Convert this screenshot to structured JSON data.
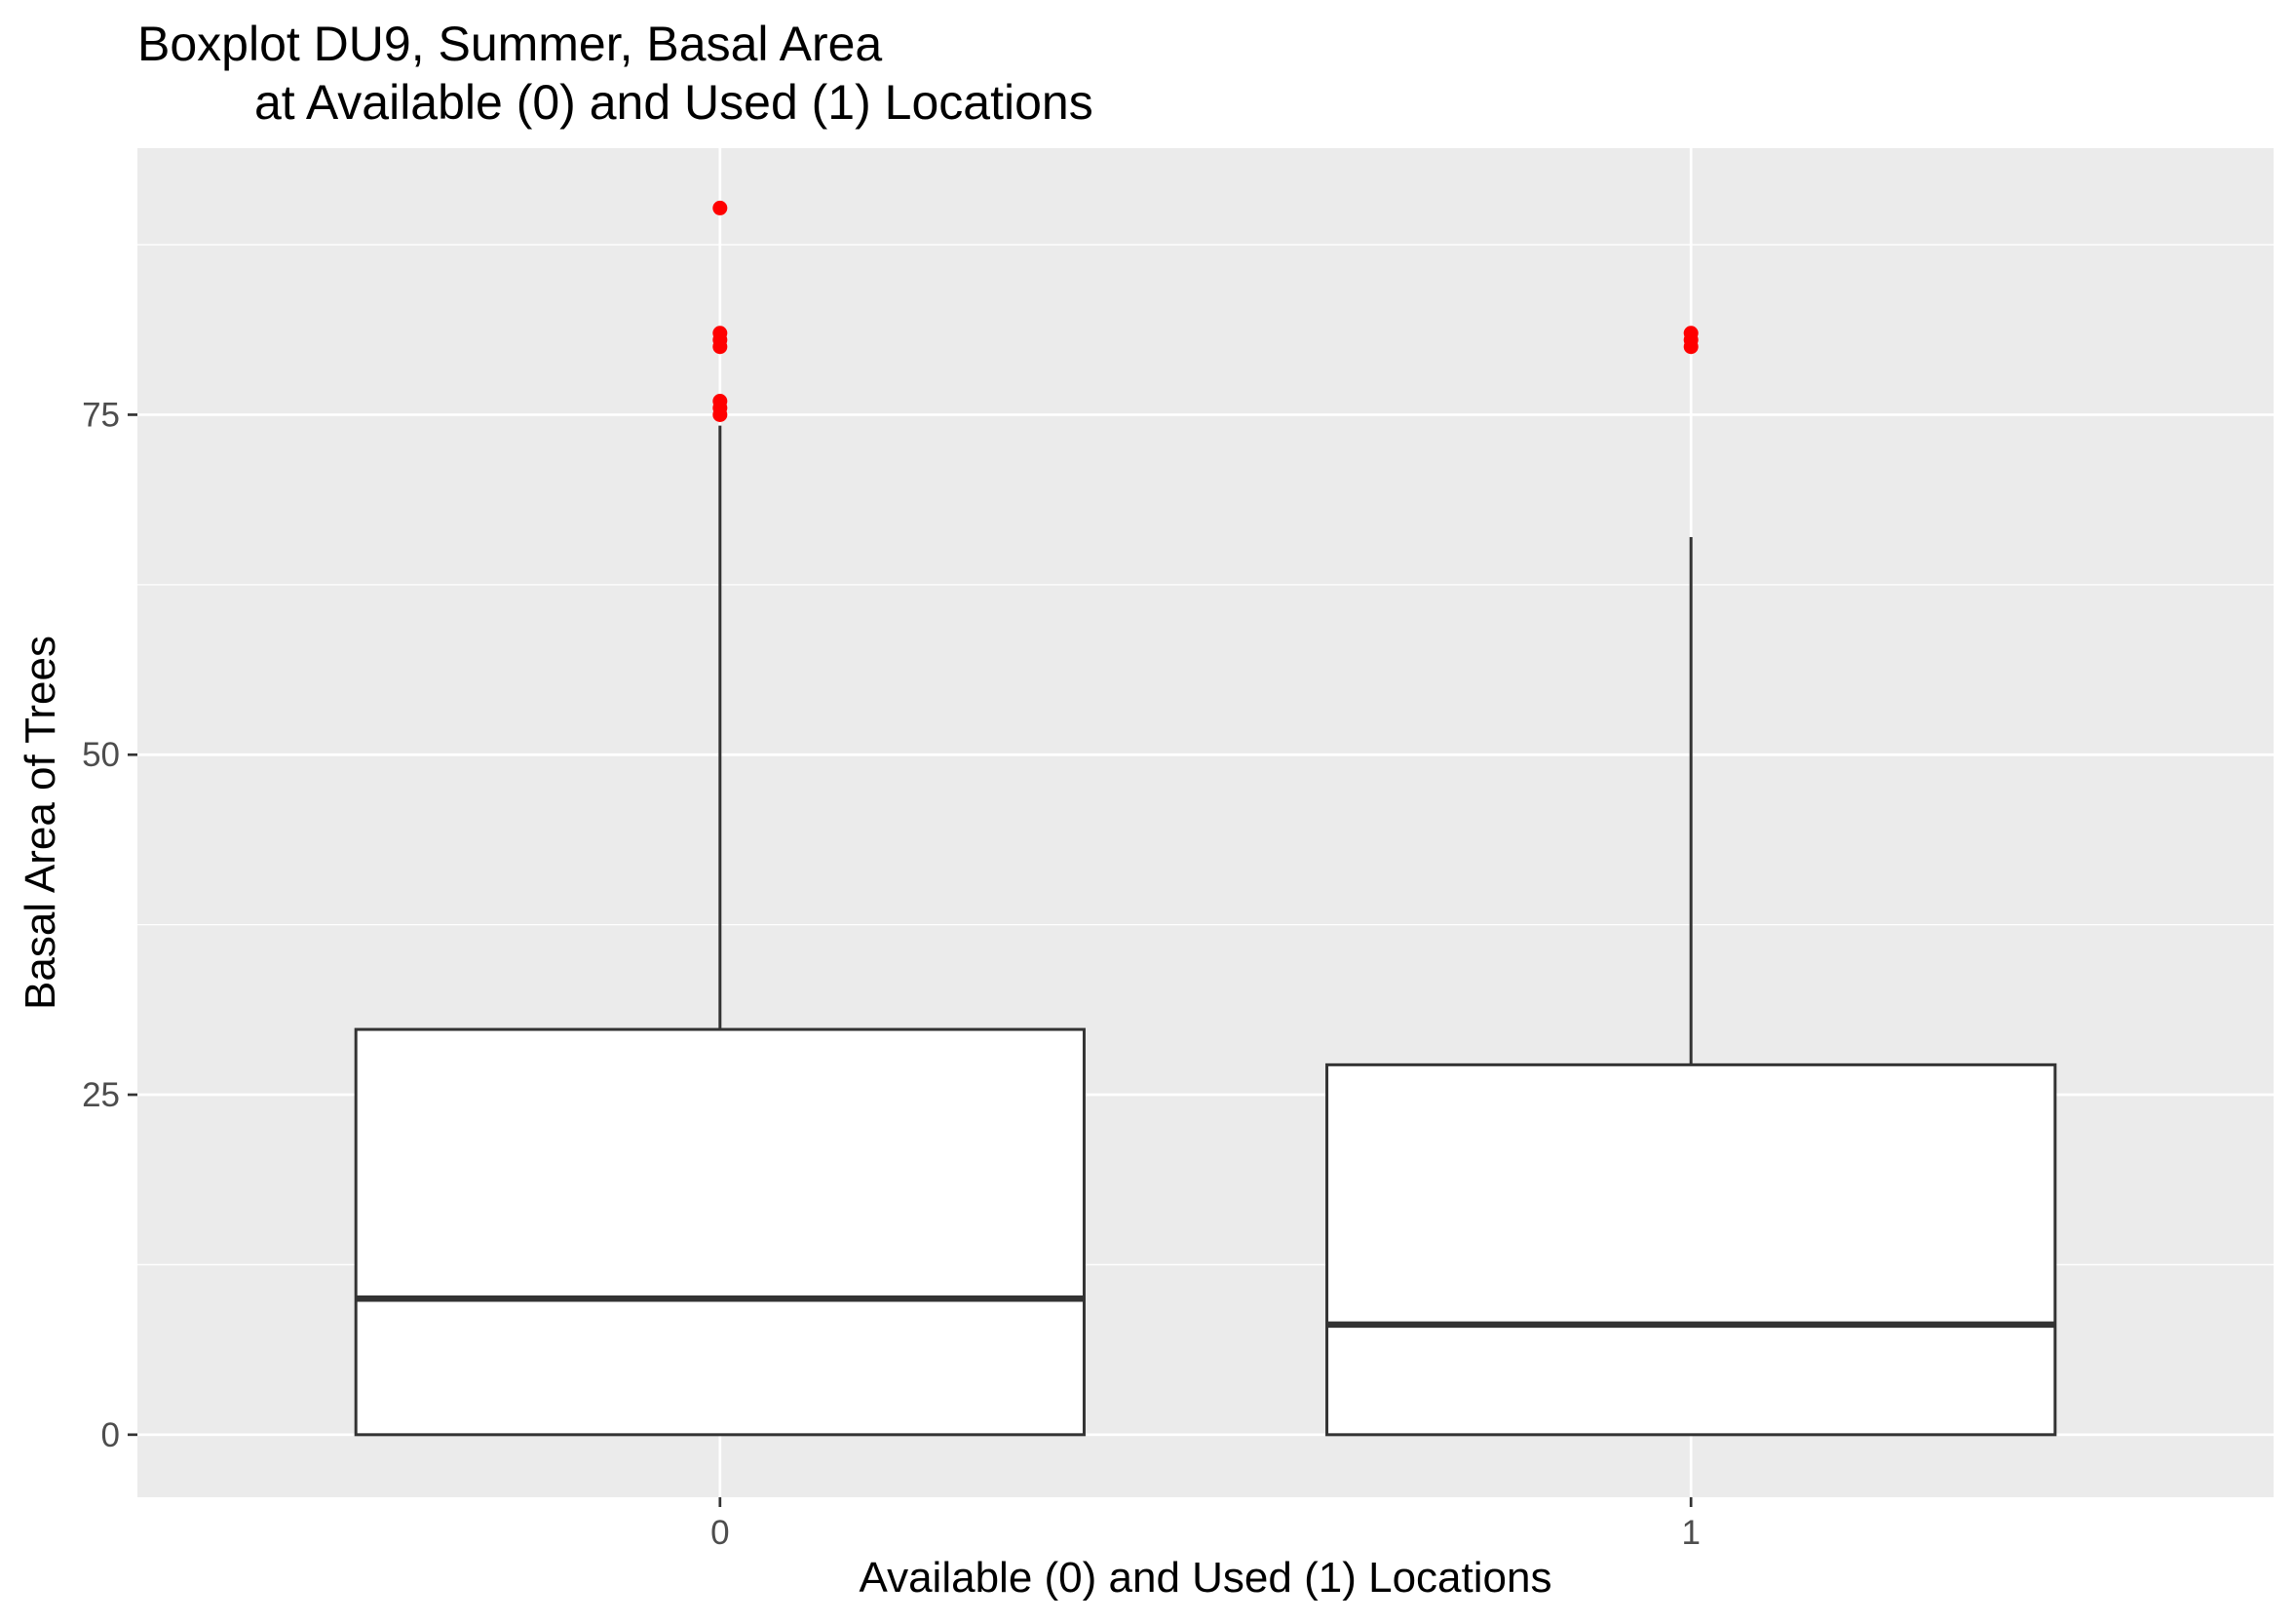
{
  "chart_data": {
    "type": "boxplot",
    "title": "Boxplot DU9, Summer, Basal Area",
    "subtitle": "at Available (0) and Used (1) Locations",
    "xlabel": "Available (0) and Used (1) Locations",
    "ylabel": "Basal Area of Trees",
    "categories": [
      "0",
      "1"
    ],
    "ylim": [
      -4.6,
      94.6
    ],
    "yticks": [
      0,
      25,
      50,
      75
    ],
    "grid": true,
    "legend": "none",
    "colors": {
      "panel_background": "#ebebeb",
      "grid": "#ffffff",
      "box_fill": "#ffffff",
      "box_line": "#333333",
      "outlier": "#ff0000",
      "tick_text": "#4d4d4d"
    },
    "boxes": [
      {
        "category": "0",
        "whisker_low": 0,
        "q1": 0,
        "median": 10,
        "q3": 29.8,
        "whisker_high": 74.2,
        "outliers": [
          75,
          75.5,
          76,
          80,
          80.5,
          81,
          90.2
        ]
      },
      {
        "category": "1",
        "whisker_low": 0,
        "q1": 0,
        "median": 8.1,
        "q3": 27.2,
        "whisker_high": 66,
        "outliers": [
          80,
          80.5,
          81
        ]
      }
    ]
  }
}
